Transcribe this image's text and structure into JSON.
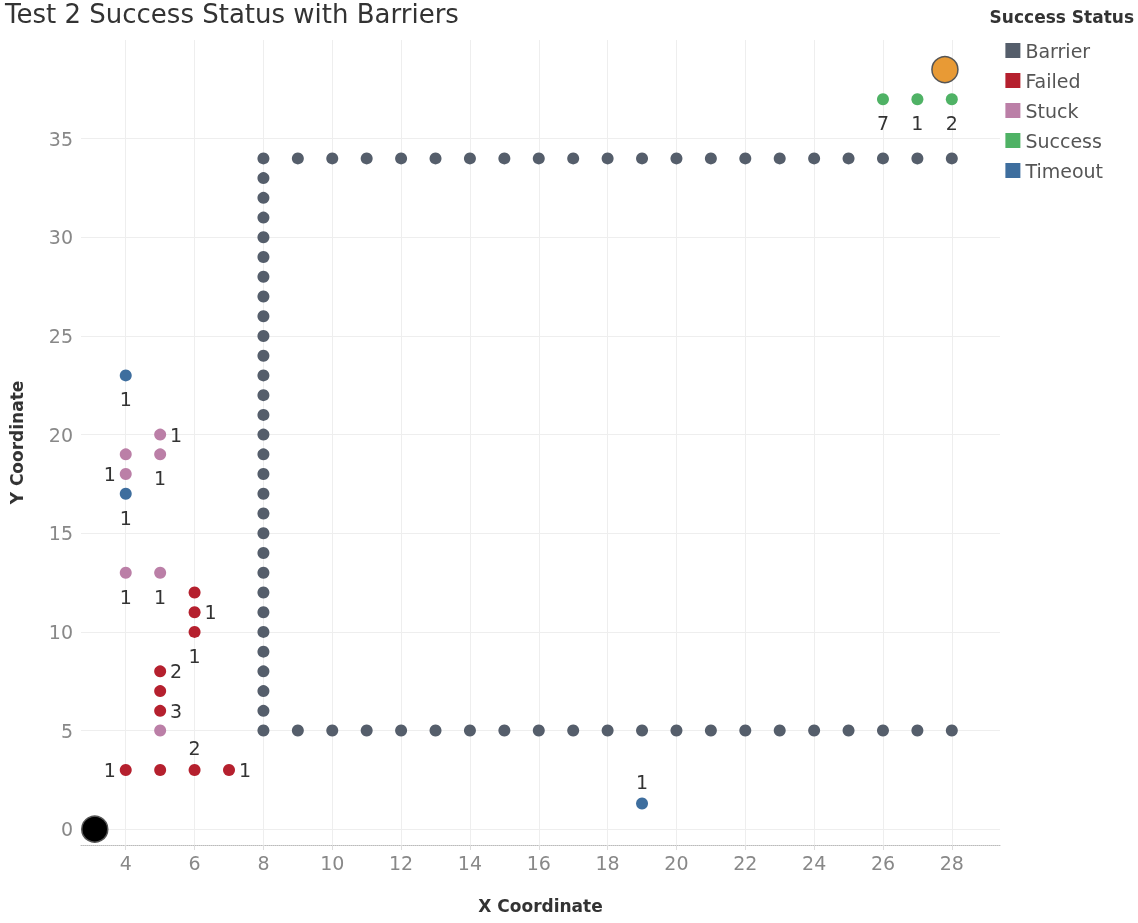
{
  "chart_data": {
    "type": "scatter",
    "title": "Test 2 Success Status with Barriers",
    "xlabel": "X Coordinate",
    "ylabel": "Y Coordinate",
    "legend_title": "Success Status",
    "legend": "top right",
    "grid": true,
    "marker": "circle",
    "xlim": [
      2.7,
      29.4
    ],
    "xticks": [
      4,
      6,
      8,
      10,
      12,
      14,
      16,
      18,
      20,
      22,
      24,
      26,
      28
    ],
    "ylim": [
      -0.8,
      40
    ],
    "yticks": [
      0,
      5,
      10,
      15,
      20,
      25,
      30,
      35
    ],
    "annotations": [
      {
        "text": "1",
        "x": 4,
        "y": 3
      },
      {
        "text": "2",
        "x": 6,
        "y": 3
      },
      {
        "text": "1",
        "x": 7,
        "y": 3
      },
      {
        "text": "3",
        "x": 5,
        "y": 6
      },
      {
        "text": "2",
        "x": 5,
        "y": 8
      },
      {
        "text": "1",
        "x": 6,
        "y": 10
      },
      {
        "text": "1",
        "x": 6,
        "y": 11
      },
      {
        "text": "1",
        "x": 4,
        "y": 13
      },
      {
        "text": "1",
        "x": 5,
        "y": 13
      },
      {
        "text": "1",
        "x": 4,
        "y": 18
      },
      {
        "text": "1",
        "x": 5,
        "y": 19
      },
      {
        "text": "1",
        "x": 5,
        "y": 20
      },
      {
        "text": "1",
        "x": 4,
        "y": 17
      },
      {
        "text": "1",
        "x": 4,
        "y": 23
      },
      {
        "text": "1",
        "x": 19,
        "y": 1.3
      },
      {
        "text": "7",
        "x": 26,
        "y": 37
      },
      {
        "text": "1",
        "x": 27,
        "y": 37
      },
      {
        "text": "2",
        "x": 28,
        "y": 37
      }
    ],
    "series": [
      {
        "name": "Barrier",
        "color": "#555e6b",
        "x": [
          8,
          8,
          8,
          8,
          8,
          8,
          8,
          8,
          8,
          8,
          8,
          8,
          8,
          8,
          8,
          8,
          8,
          8,
          8,
          8,
          8,
          8,
          8,
          8,
          8,
          8,
          8,
          8,
          8,
          8,
          9,
          10,
          11,
          12,
          13,
          14,
          15,
          16,
          17,
          18,
          19,
          20,
          21,
          22,
          23,
          24,
          25,
          26,
          27,
          28,
          9,
          10,
          11,
          12,
          13,
          14,
          15,
          16,
          17,
          18,
          19,
          20,
          21,
          22,
          23,
          24,
          25,
          26,
          27,
          28
        ],
        "values": [
          5,
          6,
          7,
          8,
          9,
          10,
          11,
          12,
          13,
          14,
          15,
          16,
          17,
          18,
          19,
          20,
          21,
          22,
          23,
          24,
          25,
          26,
          27,
          28,
          29,
          30,
          31,
          32,
          33,
          34,
          34,
          34,
          34,
          34,
          34,
          34,
          34,
          34,
          34,
          34,
          34,
          34,
          34,
          34,
          34,
          34,
          34,
          34,
          34,
          34,
          5,
          5,
          5,
          5,
          5,
          5,
          5,
          5,
          5,
          5,
          5,
          5,
          5,
          5,
          5,
          5,
          5,
          5,
          5,
          5
        ]
      },
      {
        "name": "Failed",
        "color": "#b5202e",
        "x": [
          4,
          5,
          6,
          7,
          5,
          5,
          5,
          6,
          6,
          6
        ],
        "values": [
          3,
          3,
          3,
          3,
          6,
          7,
          8,
          10,
          11,
          12
        ]
      },
      {
        "name": "Stuck",
        "color": "#bb7fa7",
        "x": [
          5,
          4,
          5,
          4,
          4,
          5,
          5
        ],
        "values": [
          5,
          13,
          13,
          18,
          19,
          19,
          20
        ]
      },
      {
        "name": "Success",
        "color": "#4fb265",
        "x": [
          26,
          27,
          28
        ],
        "values": [
          37,
          37,
          37
        ]
      },
      {
        "name": "Timeout",
        "color": "#3e6e9e",
        "x": [
          4,
          4,
          19
        ],
        "values": [
          17,
          23,
          1.3
        ]
      },
      {
        "color": "#000000",
        "x": [
          3.1
        ],
        "values": [
          0
        ]
      },
      {
        "color": "#e89a35",
        "x": [
          27.8
        ],
        "values": [
          38.5
        ]
      }
    ]
  }
}
